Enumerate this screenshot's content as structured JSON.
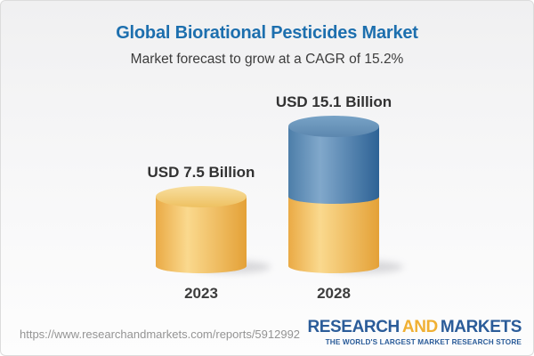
{
  "header": {
    "title": "Global Biorational Pesticides Market",
    "subtitle": "Market forecast to grow at a CAGR of 15.2%"
  },
  "chart_data": {
    "type": "bar",
    "variant": "3d-cylinder",
    "title": "Global Biorational Pesticides Market",
    "subtitle": "Market forecast to grow at a CAGR of 15.2%",
    "unit": "USD Billion",
    "cagr_percent": 15.2,
    "categories": [
      "2023",
      "2028"
    ],
    "values": [
      7.5,
      15.1
    ],
    "axes": "none",
    "grid": false,
    "legend": "none",
    "bars": [
      {
        "category": "2023",
        "total": 7.5,
        "value_label": "USD 7.5 Billion",
        "segments": [
          {
            "value": 7.5,
            "color_key": "gold"
          }
        ]
      },
      {
        "category": "2028",
        "total": 15.1,
        "value_label": "USD 15.1 Billion",
        "segments": [
          {
            "value": 7.5,
            "color_key": "gold"
          },
          {
            "value": 7.6,
            "color_key": "blue"
          }
        ]
      }
    ],
    "colors": {
      "gold": "#f2c464",
      "blue": "#5585b2",
      "label_text": "#323232"
    }
  },
  "footer": {
    "url": "https://www.researchandmarkets.com/reports/5912992",
    "logo": {
      "part1": "RESEARCH",
      "part2": "AND",
      "part3": "MARKETS",
      "tagline": "THE WORLD'S LARGEST MARKET RESEARCH STORE",
      "blue": "#2b5c99",
      "gold": "#f0b033"
    }
  },
  "colors": {
    "title_blue": "#1d6fae",
    "subtitle_gray": "#3c3c3c",
    "url_gray": "#949494"
  }
}
